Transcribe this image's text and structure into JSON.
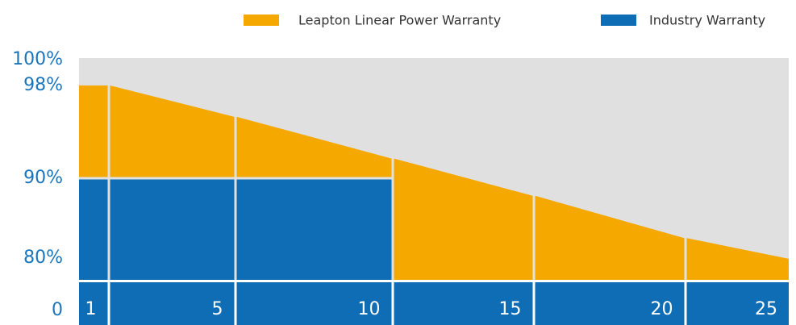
{
  "chart_data": {
    "type": "area",
    "categories": [
      "1",
      "5",
      "10",
      "15",
      "20",
      "25"
    ],
    "series": [
      {
        "name": "Leapton Linear Power Warranty",
        "color": "#f5a800",
        "values": [
          98,
          95.3,
          91.7,
          87.8,
          82.5,
          79
        ]
      },
      {
        "name": "Industry Warranty",
        "color": "#0f6db5",
        "values": [
          90,
          90,
          90,
          null,
          null,
          null
        ]
      }
    ],
    "ylim": [
      0,
      100
    ],
    "yticks": [
      {
        "value": 100,
        "label": "100%"
      },
      {
        "value": 98,
        "label": "98%"
      },
      {
        "value": 90,
        "label": "90%"
      },
      {
        "value": 80,
        "label": "80%"
      },
      0
    ],
    "background": "#e0e0e0"
  }
}
